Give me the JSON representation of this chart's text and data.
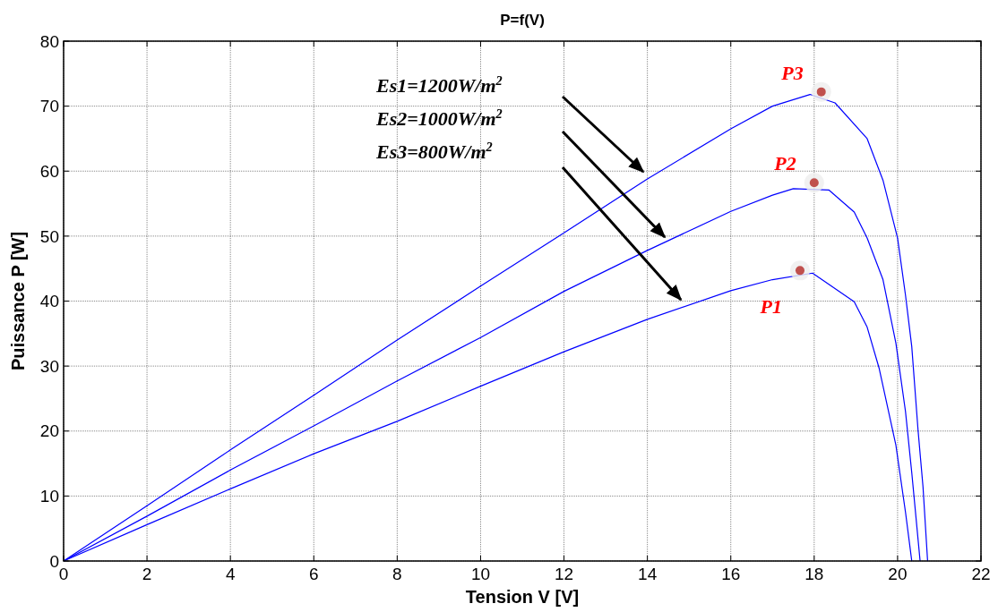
{
  "chart_data": {
    "type": "line",
    "title": "P=f(V)",
    "xlabel": "Tension V [V]",
    "ylabel": "Puissance P [W]",
    "xlim": [
      0,
      22
    ],
    "xticks": [
      0,
      2,
      4,
      6,
      8,
      10,
      12,
      14,
      16,
      18,
      20,
      22
    ],
    "ylim": [
      0,
      80
    ],
    "yticks": [
      0,
      10,
      20,
      30,
      40,
      50,
      60,
      70,
      80
    ],
    "grid": true,
    "marker": "none",
    "line_style": "solid",
    "series": [
      {
        "color": "#0000ff",
        "x": [
          0,
          2,
          4,
          6,
          8,
          10,
          12,
          14,
          16,
          17,
          17.9,
          18.5,
          19.27,
          19.65,
          20.0,
          20.19,
          20.34,
          20.49,
          20.61,
          20.72
        ],
        "values": [
          0,
          8.5,
          17.1,
          25.5,
          34.0,
          42.3,
          50.5,
          58.8,
          66.5,
          70,
          71.8,
          70.5,
          65,
          58.6,
          49.7,
          40.9,
          33,
          20.2,
          11.4,
          0
        ]
      },
      {
        "color": "#0000ff",
        "x": [
          0,
          2,
          4,
          6,
          8,
          10,
          12,
          14,
          16,
          17,
          17.5,
          18.35,
          18.96,
          19.27,
          19.65,
          19.96,
          20.19,
          20.34,
          20.54
        ],
        "values": [
          0,
          6.9,
          14.0,
          20.8,
          27.7,
          34.4,
          41.5,
          47.8,
          53.8,
          56.3,
          57.3,
          57.1,
          53.7,
          49.7,
          43.3,
          33.5,
          23.0,
          13.6,
          0
        ]
      },
      {
        "color": "#0000ff",
        "x": [
          0,
          2,
          4,
          6,
          8,
          10,
          12,
          14,
          16,
          17,
          17.96,
          18.96,
          19.27,
          19.56,
          19.96,
          20.19,
          20.34
        ],
        "values": [
          0,
          5.6,
          11.1,
          16.5,
          21.5,
          26.9,
          32.2,
          37.2,
          41.6,
          43.3,
          44.3,
          39.9,
          36.0,
          29.6,
          17.8,
          7.5,
          0
        ]
      },
      {
        "type": "scatter",
        "color": "#c0504d",
        "marker": "circle",
        "x": [
          18.17,
          18.0,
          17.66
        ],
        "values": [
          72.2,
          58.2,
          44.7
        ]
      }
    ],
    "annotations": [
      {
        "text": "P3",
        "x": 18.17,
        "y": 72.2
      },
      {
        "text": "P2",
        "x": 18.0,
        "y": 58.2
      },
      {
        "text": "P1",
        "x": 17.66,
        "y": 44.7
      },
      "Es1=1200W/m$^{2}$",
      "Es2=1000W/m$^{2}$",
      "Es3=800W/m$^{2}$"
    ]
  }
}
